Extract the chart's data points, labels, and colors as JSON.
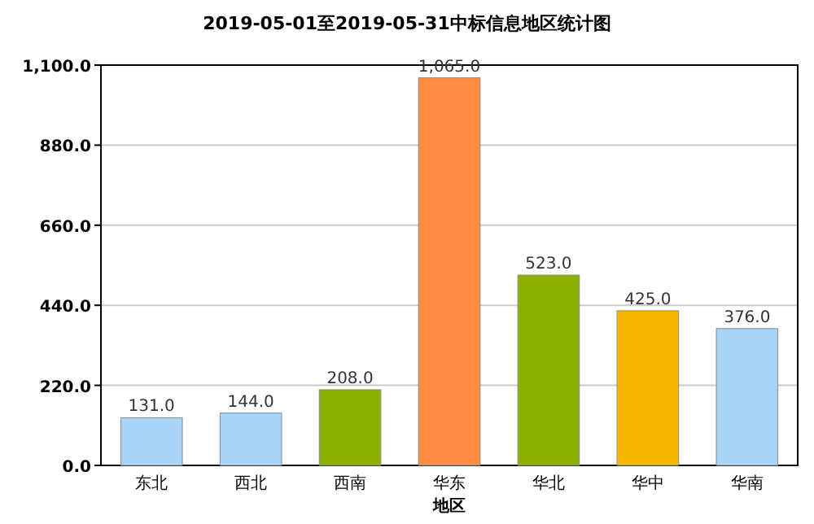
{
  "chart_data": {
    "type": "bar",
    "title": "2019-05-01至2019-05-31中标信息地区统计图",
    "xlabel": "地区",
    "categories": [
      "东北",
      "西北",
      "西南",
      "华东",
      "华北",
      "华中",
      "华南"
    ],
    "values": [
      131,
      144,
      208,
      1065,
      523,
      425,
      376
    ],
    "colors": [
      "#a8d4f8",
      "#a8d4f8",
      "#8cb000",
      "#ff8c40",
      "#8cb000",
      "#f8b800",
      "#a8d4f8"
    ],
    "value_labels": [
      "131.0",
      "144.0",
      "208.0",
      "1,065.0",
      "523.0",
      "425.0",
      "376.0"
    ],
    "ylim": [
      0,
      1100
    ],
    "yticks": [
      {
        "value": 0,
        "label": "0.0"
      },
      {
        "value": 220,
        "label": "220.0"
      },
      {
        "value": 440,
        "label": "440.0"
      },
      {
        "value": 660,
        "label": "660.0"
      },
      {
        "value": 880,
        "label": "880.0"
      },
      {
        "value": 1100,
        "label": "1,100.0"
      }
    ],
    "grid": "y"
  }
}
